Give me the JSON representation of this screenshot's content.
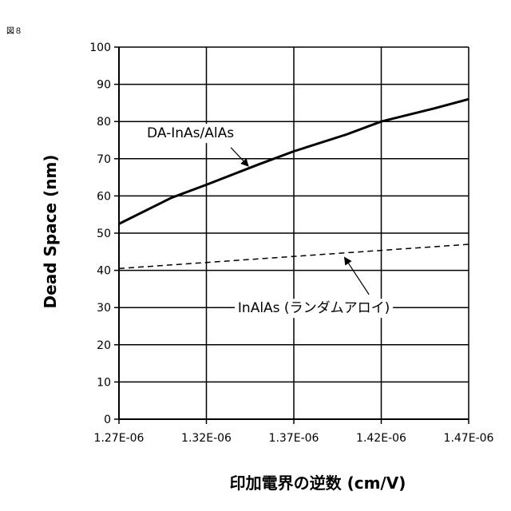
{
  "figure_label": "図８",
  "chart_data": {
    "type": "line",
    "title": "",
    "xlabel": "印加電界の逆数 (cm/V)",
    "ylabel": "Dead Space (nm)",
    "xlim": [
      1.27e-06,
      1.47e-06
    ],
    "ylim": [
      0,
      100
    ],
    "x_ticks": [
      1.27e-06,
      1.32e-06,
      1.37e-06,
      1.42e-06,
      1.47e-06
    ],
    "x_tick_labels": [
      "1.27E-06",
      "1.32E-06",
      "1.37E-06",
      "1.42E-06",
      "1.47E-06"
    ],
    "y_ticks": [
      0,
      10,
      20,
      30,
      40,
      50,
      60,
      70,
      80,
      90,
      100
    ],
    "y_tick_labels": [
      "0",
      "10",
      "20",
      "30",
      "40",
      "50",
      "60",
      "70",
      "80",
      "90",
      "100"
    ],
    "grid": true,
    "series": [
      {
        "name": "DA-InAs/AlAs",
        "style": "solid",
        "x": [
          1.27e-06,
          1.3e-06,
          1.32e-06,
          1.35e-06,
          1.37e-06,
          1.4e-06,
          1.42e-06,
          1.45e-06,
          1.47e-06
        ],
        "y": [
          52.5,
          59.5,
          63,
          68.5,
          72,
          76.5,
          80,
          83.5,
          86
        ]
      },
      {
        "name": "InAlAs (ランダムアロイ)",
        "style": "dashed",
        "x": [
          1.27e-06,
          1.47e-06
        ],
        "y": [
          40.5,
          47
        ]
      }
    ],
    "annotations": [
      {
        "text": "DA-InAs/AlAs",
        "x": 1.286e-06,
        "y": 77,
        "arrow_from": [
          1.334e-06,
          73
        ],
        "arrow_to": [
          1.344e-06,
          68
        ]
      },
      {
        "text": "InAlAs (ランダムアロイ)",
        "x": 1.338e-06,
        "y": 30,
        "arrow_from": [
          1.413e-06,
          33.5
        ],
        "arrow_to": [
          1.399e-06,
          43.5
        ]
      }
    ]
  }
}
